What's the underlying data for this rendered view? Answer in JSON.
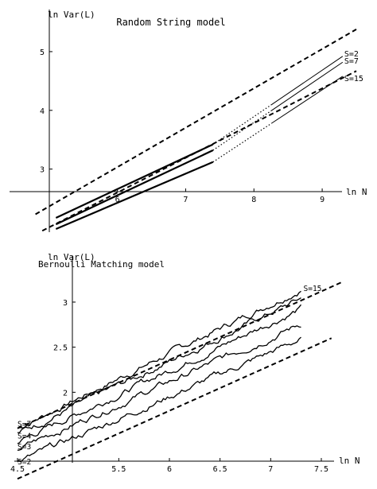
{
  "chart_data": [
    {
      "type": "line",
      "title": "Random String model",
      "xlabel": "ln N",
      "ylabel": "ln Var(L)",
      "xlim": [
        4.7,
        9.5
      ],
      "ylim": [
        1.98,
        5.5
      ],
      "grid": false,
      "x_ticks": [
        6,
        7,
        8,
        9
      ],
      "y_ticks": [
        3,
        4,
        5
      ],
      "series": [
        {
          "name": "S=2",
          "x": [
            5.1,
            7.4,
            9.3
          ],
          "y": [
            2.17,
            3.42,
            4.92
          ]
        },
        {
          "name": "S=7",
          "x": [
            5.1,
            7.4,
            9.3
          ],
          "y": [
            2.06,
            3.32,
            4.82
          ]
        },
        {
          "name": "S=15",
          "x": [
            5.1,
            7.4,
            9.3
          ],
          "y": [
            1.98,
            3.12,
            4.58
          ]
        }
      ],
      "bounds": [
        {
          "x": [
            4.8,
            9.5
          ],
          "y": [
            2.23,
            5.38
          ]
        },
        {
          "x": [
            4.9,
            9.5
          ],
          "y": [
            1.95,
            4.67
          ]
        }
      ],
      "labels": [
        "S=2",
        "S=7",
        "S=15"
      ]
    },
    {
      "type": "line",
      "title": "Bernoulli Matching model",
      "xlabel": "ln N",
      "ylabel": "ln Var(L)",
      "xlim": [
        4.5,
        7.72
      ],
      "ylim": [
        1.28,
        3.22
      ],
      "grid": false,
      "x_ticks": [
        "4.5",
        "5.5",
        "6",
        "6.5",
        "7",
        "7.5"
      ],
      "y_ticks": [
        "2",
        "2.5",
        "3"
      ],
      "series": [
        {
          "name": "S=15",
          "x": [
            4.5,
            7.3
          ],
          "y": [
            1.6,
            3.15
          ]
        },
        {
          "name": "S=7",
          "x": [
            4.5,
            7.3
          ],
          "y": [
            1.54,
            3.04
          ]
        },
        {
          "name": "S=4",
          "x": [
            4.5,
            7.3
          ],
          "y": [
            1.45,
            2.93
          ]
        },
        {
          "name": "S=3",
          "x": [
            4.5,
            7.3
          ],
          "y": [
            1.37,
            2.76
          ]
        },
        {
          "name": "S=2",
          "x": [
            4.5,
            7.3
          ],
          "y": [
            1.22,
            2.59
          ]
        }
      ],
      "bounds": [
        {
          "x": [
            4.5,
            7.7
          ],
          "y": [
            1.6,
            3.22
          ]
        },
        {
          "x": [
            4.5,
            7.6
          ],
          "y": [
            1.04,
            2.6
          ]
        }
      ],
      "labels_left": [
        "S=7",
        "S=4",
        "S=3",
        "S=2"
      ],
      "labels_right": [
        "S=15"
      ]
    }
  ]
}
